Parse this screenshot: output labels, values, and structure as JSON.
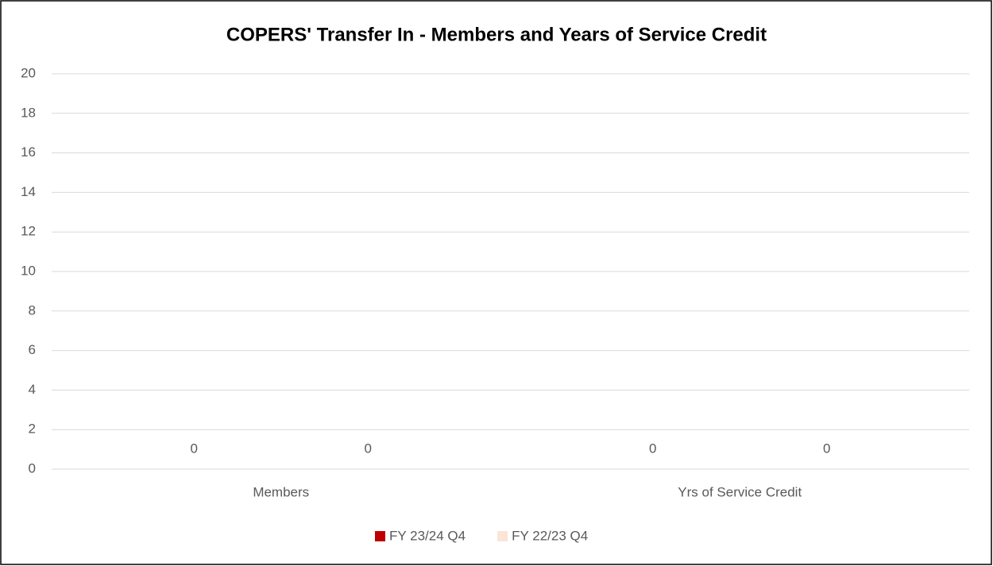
{
  "chart_data": {
    "type": "bar",
    "title": "COPERS' Transfer In - Members and Years of Service Credit",
    "categories": [
      "Members",
      "Yrs of Service Credit"
    ],
    "series": [
      {
        "name": "FY 23/24 Q4",
        "color": "#c00000",
        "values": [
          0,
          0
        ]
      },
      {
        "name": "FY 22/23 Q4",
        "color": "#fbe5d6",
        "values": [
          0,
          0
        ]
      }
    ],
    "ylim": [
      0,
      20
    ],
    "yticks": [
      0,
      2,
      4,
      6,
      8,
      10,
      12,
      14,
      16,
      18,
      20
    ],
    "grid": true,
    "legend": "bottom"
  }
}
